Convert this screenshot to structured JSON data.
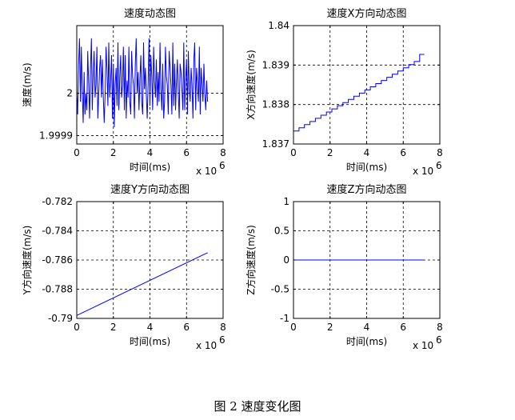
{
  "caption": "图 2  速度变化图",
  "chart_data": [
    {
      "type": "line",
      "title": "速度动态图",
      "xlabel": "时间(ms)",
      "ylabel": "速度(m/s)",
      "x_multiplier": "x 10",
      "x_multiplier_exp": "6",
      "xlim": [
        0,
        8
      ],
      "ylim": [
        1.99988,
        2.00016
      ],
      "xticks": [
        "0",
        "2",
        "4",
        "6",
        "8"
      ],
      "yticks": [
        {
          "v": 1.9999,
          "label": "1.9999"
        },
        {
          "v": 2.0,
          "label": "2"
        }
      ],
      "grid": true,
      "color": "#0000ff",
      "series": [
        {
          "x": [
            0.0,
            0.05,
            0.1,
            0.15,
            0.2,
            0.25,
            0.3,
            0.35,
            0.4,
            0.45,
            0.5,
            0.55,
            0.6,
            0.65,
            0.7,
            0.75,
            0.8,
            0.85,
            0.9,
            0.95,
            1.0,
            1.05,
            1.1,
            1.15,
            1.2,
            1.25,
            1.3,
            1.35,
            1.4,
            1.45,
            1.5,
            1.55,
            1.6,
            1.65,
            1.7,
            1.75,
            1.8,
            1.85,
            1.9,
            1.95,
            2.0,
            2.05,
            2.1,
            2.15,
            2.2,
            2.25,
            2.3,
            2.35,
            2.4,
            2.45,
            2.5,
            2.55,
            2.6,
            2.65,
            2.7,
            2.75,
            2.8,
            2.85,
            2.9,
            2.95,
            3.0,
            3.05,
            3.1,
            3.15,
            3.2,
            3.25,
            3.3,
            3.35,
            3.4,
            3.45,
            3.5,
            3.55,
            3.6,
            3.65,
            3.7,
            3.75,
            3.8,
            3.85,
            3.9,
            3.95,
            4.0,
            4.05,
            4.1,
            4.15,
            4.2,
            4.25,
            4.3,
            4.35,
            4.4,
            4.45,
            4.5,
            4.55,
            4.6,
            4.65,
            4.7,
            4.75,
            4.8,
            4.85,
            4.9,
            4.95,
            5.0,
            5.05,
            5.1,
            5.15,
            5.2,
            5.25,
            5.3,
            5.35,
            5.4,
            5.45,
            5.5,
            5.55,
            5.6,
            5.65,
            5.7,
            5.75,
            5.8,
            5.85,
            5.9,
            5.95,
            6.0,
            6.05,
            6.1,
            6.15,
            6.2,
            6.25,
            6.3,
            6.35,
            6.4,
            6.45,
            6.5,
            6.55,
            6.6,
            6.65,
            6.7,
            6.75,
            6.8,
            6.85,
            6.9,
            6.95,
            7.0,
            7.05,
            7.1,
            7.15
          ],
          "y": [
            2.0,
            1.99995,
            2.00007,
            2.00013,
            1.99998,
            2.00011,
            2.0,
            1.99993,
            2.00005,
            1.99995,
            2.0,
            1.99996,
            2.0001,
            2.00002,
            1.99994,
            2.00006,
            2.00013,
            1.99996,
            2.00005,
            2.0001,
            1.99999,
            2.00002,
            2.00011,
            1.99994,
            2.0,
            2.00006,
            2.00009,
            1.99999,
            2.00008,
            1.99999,
            1.99993,
            2.0,
            2.00011,
            2.00006,
            1.99997,
            2.00012,
            1.99999,
            2.00003,
            2.00009,
            1.99994,
            2.00007,
            1.99992,
            2.00002,
            2.00006,
            1.99997,
            2.00012,
            1.99996,
            2.00004,
            2.00009,
            1.99999,
            2.00002,
            2.00011,
            1.99996,
            2.00009,
            1.99994,
            2.00003,
            1.99999,
            2.00011,
            1.99998,
            1.99995,
            2.0001,
            2.00004,
            2.00002,
            1.99994,
            2.00007,
            2.00013,
            2.0,
            2.00005,
            1.99996,
            2.00003,
            2.00009,
            1.99998,
            1.99995,
            2.00012,
            2.00001,
            2.00006,
            2.0,
            1.99994,
            2.00002,
            2.00013,
            1.99997,
            2.00009,
            2.00004,
            1.99996,
            2.00011,
            2.00003,
            1.99999,
            2.00008,
            1.99997,
            2.00005,
            1.99998,
            2.00012,
            2.00001,
            1.99996,
            2.00007,
            1.99994,
            1.99998,
            2.00011,
            2.00004,
            2.00002,
            1.99995,
            2.0001,
            2.00006,
            2.00002,
            1.99995,
            2.00012,
            1.99997,
            2.00007,
            1.99996,
            2.00003,
            2.00008,
            2.0,
            1.99994,
            2.00007,
            2.00005,
            2.00001,
            1.99996,
            2.00012,
            1.99996,
            2.00003,
            2.00008,
            1.99995,
            2.0001,
            2.00001,
            1.99998,
            2.00006,
            2.00002,
            1.99994,
            2.00008,
            2.00012,
            1.99996,
            2.00006,
            2.00002,
            1.99998,
            2.00011,
            1.99995,
            2.00006,
            2.00002,
            1.99998,
            2.00007,
            2.0,
            1.99996,
            2.00003,
            1.99998
          ]
        }
      ]
    },
    {
      "type": "line",
      "title": "速度X方向动态图",
      "xlabel": "时间(ms)",
      "ylabel": "X方向速度(m/s)",
      "x_multiplier": "x 10",
      "x_multiplier_exp": "6",
      "xlim": [
        0,
        8
      ],
      "ylim": [
        1.837,
        1.84
      ],
      "xticks": [
        "0",
        "2",
        "4",
        "6",
        "8"
      ],
      "yticks": [
        {
          "v": 1.837,
          "label": "1.837"
        },
        {
          "v": 1.838,
          "label": "1.838"
        },
        {
          "v": 1.839,
          "label": "1.839"
        },
        {
          "v": 1.84,
          "label": "1.84"
        }
      ],
      "grid": true,
      "color": "#0000ff",
      "step": true,
      "series": [
        {
          "x": [
            0.0,
            0.3,
            0.3,
            0.6,
            0.6,
            0.9,
            0.9,
            1.2,
            1.2,
            1.5,
            1.5,
            1.8,
            1.8,
            2.1,
            2.1,
            2.4,
            2.4,
            2.7,
            2.7,
            3.0,
            3.0,
            3.3,
            3.3,
            3.6,
            3.6,
            3.9,
            3.9,
            4.2,
            4.2,
            4.5,
            4.5,
            4.8,
            4.8,
            5.1,
            5.1,
            5.4,
            5.4,
            5.7,
            5.7,
            6.0,
            6.0,
            6.3,
            6.3,
            6.6,
            6.6,
            6.9,
            6.9,
            7.15
          ],
          "y": [
            1.83733,
            1.83733,
            1.83741,
            1.83741,
            1.83749,
            1.83749,
            1.83757,
            1.83757,
            1.83765,
            1.83765,
            1.83773,
            1.83773,
            1.83781,
            1.83781,
            1.83789,
            1.83789,
            1.83797,
            1.83797,
            1.83805,
            1.83805,
            1.83813,
            1.83813,
            1.83821,
            1.83821,
            1.83829,
            1.83829,
            1.83837,
            1.83837,
            1.83845,
            1.83845,
            1.83853,
            1.83853,
            1.83861,
            1.83861,
            1.83869,
            1.83869,
            1.83877,
            1.83877,
            1.83885,
            1.83885,
            1.83893,
            1.83893,
            1.83901,
            1.83901,
            1.83909,
            1.83909,
            1.83927,
            1.83927
          ]
        }
      ]
    },
    {
      "type": "line",
      "title": "速度Y方向动态图",
      "xlabel": "时间(ms)",
      "ylabel": "Y方向速度(m/s)",
      "x_multiplier": "x 10",
      "x_multiplier_exp": "6",
      "xlim": [
        0,
        8
      ],
      "ylim": [
        -0.79,
        -0.782
      ],
      "xticks": [
        "0",
        "2",
        "4",
        "6",
        "8"
      ],
      "yticks": [
        {
          "v": -0.79,
          "label": "-0.79"
        },
        {
          "v": -0.788,
          "label": "-0.788"
        },
        {
          "v": -0.786,
          "label": "-0.786"
        },
        {
          "v": -0.784,
          "label": "-0.784"
        },
        {
          "v": -0.782,
          "label": "-0.782"
        }
      ],
      "grid": true,
      "color": "#0000ff",
      "series": [
        {
          "x": [
            0.0,
            7.15
          ],
          "y": [
            -0.7898,
            -0.7855
          ]
        }
      ]
    },
    {
      "type": "line",
      "title": "速度Z方向动态图",
      "xlabel": "时间(ms)",
      "ylabel": "Z方向速度(m/s)",
      "x_multiplier": "x 10",
      "x_multiplier_exp": "6",
      "xlim": [
        0,
        8
      ],
      "ylim": [
        -1,
        1
      ],
      "xticks": [
        "0",
        "2",
        "4",
        "6",
        "8"
      ],
      "yticks": [
        {
          "v": -1,
          "label": "-1"
        },
        {
          "v": -0.5,
          "label": "-0.5"
        },
        {
          "v": 0,
          "label": "0"
        },
        {
          "v": 0.5,
          "label": "0.5"
        },
        {
          "v": 1,
          "label": "1"
        }
      ],
      "grid": true,
      "color": "#0000ff",
      "series": [
        {
          "x": [
            0.0,
            7.15
          ],
          "y": [
            0,
            0
          ]
        }
      ]
    }
  ]
}
